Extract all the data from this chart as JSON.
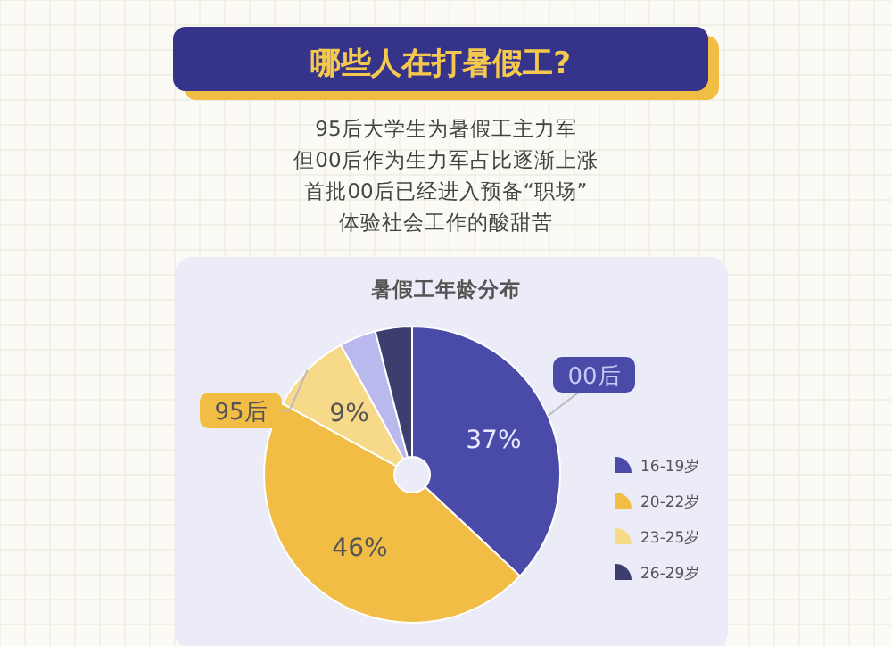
{
  "chart_data": {
    "type": "donut",
    "title": "哪些人在打暑假工?",
    "subtitle": "95后大学生为暑假工主力军",
    "legend_title": "暑假工年龄分布",
    "categories": [
      "16-19岁",
      "20-22岁",
      "23-25岁",
      null,
      "26-29岁"
    ],
    "values": [
      37,
      46,
      9,
      4,
      4
    ],
    "colors": [
      "#4a4aa8",
      "#f2bd45",
      "#f7d98a",
      "#b9b9ee",
      "#3c3f6e"
    ],
    "value_labels": [
      "37%",
      "46%",
      "9%",
      null,
      null
    ],
    "annotations": [
      "但00后作为生力军占比逐渐上涨",
      "首批00后已经进入预备“职场”",
      "体验社会工作的酸甜苦",
      {
        "text": "00后",
        "x": "16-19岁"
      },
      {
        "text": "95后",
        "x": "23-25岁"
      }
    ],
    "legend": "right"
  }
}
